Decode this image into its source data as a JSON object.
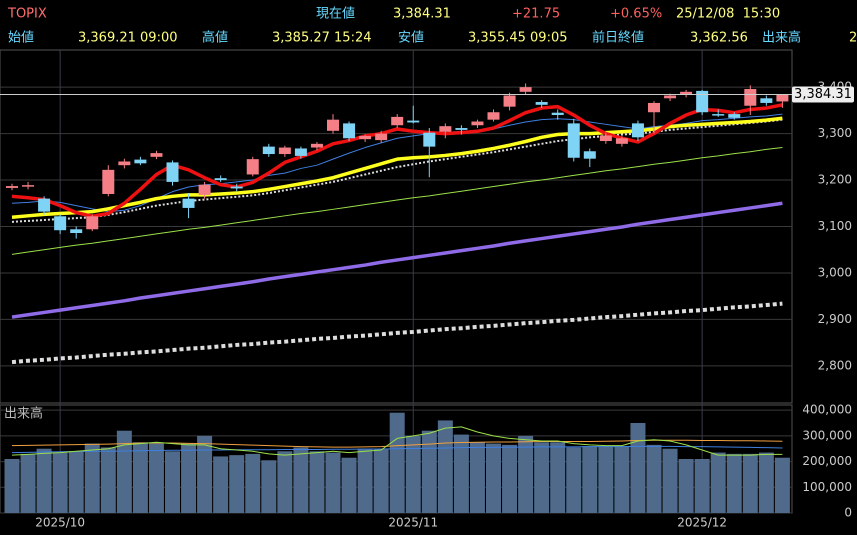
{
  "header": {
    "symbol": "TOPIX",
    "price_label": "現在値",
    "price": "3,384.31",
    "change": "+21.75",
    "change_pct": "+0.65%",
    "datetime": "25/12/08  15:30",
    "open_label": "始値",
    "open": "3,369.21 09:00",
    "high_label": "高値",
    "high": "3,385.27 15:24",
    "low_label": "安値",
    "low": "3,355.45 09:05",
    "prev_close_label": "前日終値",
    "prev_close": "3,362.56",
    "volume_label": "出来高",
    "volume": "2"
  },
  "chart_data": [
    {
      "type": "candlestick",
      "categories": [
        null,
        null,
        null,
        "2025/10",
        null,
        null,
        null,
        null,
        null,
        null,
        null,
        null,
        null,
        null,
        null,
        null,
        null,
        null,
        null,
        null,
        null,
        null,
        null,
        null,
        null,
        "2025/11",
        null,
        null,
        null,
        null,
        null,
        null,
        null,
        null,
        null,
        null,
        null,
        null,
        null,
        null,
        null,
        null,
        null,
        "2025/12",
        null,
        null,
        null,
        null,
        null
      ],
      "open": [
        3183,
        3186,
        3160,
        3122,
        3094,
        3094,
        3170,
        3232,
        3244,
        3250,
        3238,
        3160,
        3168,
        3204,
        3186,
        3212,
        3272,
        3256,
        3268,
        3270,
        3306,
        3322,
        3288,
        3286,
        3318,
        3328,
        3302,
        3304,
        3312,
        3318,
        3330,
        3358,
        3390,
        3368,
        3345,
        3322,
        3262,
        3284,
        3278,
        3322,
        3346,
        3376,
        3384,
        3392,
        3342,
        3342,
        3360,
        3376,
        3369.21
      ],
      "high": [
        3192,
        3196,
        3165,
        3126,
        3100,
        3126,
        3232,
        3246,
        3250,
        3263,
        3242,
        3172,
        3196,
        3210,
        3192,
        3250,
        3278,
        3274,
        3272,
        3282,
        3342,
        3326,
        3298,
        3306,
        3342,
        3360,
        3312,
        3322,
        3318,
        3330,
        3352,
        3388,
        3408,
        3372,
        3352,
        3332,
        3268,
        3302,
        3294,
        3328,
        3370,
        3386,
        3394,
        3394,
        3352,
        3346,
        3404,
        3382,
        3385.27
      ],
      "low": [
        3178,
        3180,
        3125,
        3084,
        3074,
        3090,
        3165,
        3225,
        3232,
        3245,
        3188,
        3118,
        3160,
        3196,
        3176,
        3208,
        3250,
        3250,
        3246,
        3264,
        3300,
        3284,
        3282,
        3280,
        3312,
        3322,
        3206,
        3290,
        3298,
        3312,
        3326,
        3350,
        3384,
        3355,
        3330,
        3240,
        3228,
        3278,
        3272,
        3284,
        3300,
        3370,
        3378,
        3340,
        3336,
        3330,
        3340,
        3360,
        3355.45
      ],
      "close": [
        3187,
        3189,
        3132,
        3092,
        3086,
        3122,
        3222,
        3240,
        3236,
        3258,
        3196,
        3140,
        3190,
        3200,
        3182,
        3245,
        3256,
        3270,
        3252,
        3278,
        3330,
        3290,
        3295,
        3300,
        3336,
        3324,
        3272,
        3316,
        3308,
        3326,
        3346,
        3382,
        3400,
        3362,
        3340,
        3248,
        3246,
        3296,
        3290,
        3292,
        3366,
        3382,
        3390,
        3346,
        3340,
        3334,
        3396,
        3366,
        3384.31
      ],
      "up_color": "#f47f86",
      "down_color": "#7fd3f5",
      "lines": [
        {
          "color": "#8f6be8",
          "style": "thick",
          "values": [
            2905,
            2910,
            2915,
            2920,
            2925,
            2930,
            2935,
            2940,
            2946,
            2951,
            2956,
            2961,
            2966,
            2971,
            2976,
            2981,
            2987,
            2992,
            2997,
            3002,
            3007,
            3012,
            3017,
            3023,
            3028,
            3033,
            3038,
            3043,
            3048,
            3053,
            3058,
            3064,
            3069,
            3074,
            3079,
            3084,
            3089,
            3094,
            3099,
            3105,
            3110,
            3115,
            3120,
            3125,
            3130,
            3135,
            3140,
            3145,
            3150
          ]
        },
        {
          "color": "#dddddd",
          "style": "dotted-thick",
          "values": [
            2808,
            2811,
            2813,
            2816,
            2818,
            2821,
            2824,
            2826,
            2829,
            2831,
            2834,
            2837,
            2839,
            2842,
            2845,
            2847,
            2850,
            2852,
            2855,
            2858,
            2860,
            2863,
            2865,
            2868,
            2871,
            2873,
            2876,
            2879,
            2881,
            2884,
            2886,
            2889,
            2892,
            2894,
            2897,
            2899,
            2902,
            2905,
            2907,
            2910,
            2913,
            2915,
            2918,
            2920,
            2923,
            2926,
            2928,
            2931,
            2934
          ]
        },
        {
          "color": "#9be04a",
          "style": "thin",
          "values": [
            3040,
            3045,
            3050,
            3055,
            3060,
            3064,
            3069,
            3074,
            3079,
            3084,
            3089,
            3094,
            3098,
            3103,
            3108,
            3113,
            3118,
            3123,
            3128,
            3132,
            3137,
            3142,
            3147,
            3152,
            3157,
            3162,
            3166,
            3171,
            3176,
            3181,
            3186,
            3191,
            3196,
            3200,
            3205,
            3210,
            3215,
            3220,
            3224,
            3229,
            3234,
            3238,
            3243,
            3248,
            3252,
            3257,
            3261,
            3266,
            3270
          ]
        },
        {
          "color": "#3f7fe0",
          "style": "thin",
          "values": [
            3150,
            3152,
            3155,
            3152,
            3145,
            3138,
            3132,
            3135,
            3145,
            3160,
            3175,
            3185,
            3190,
            3192,
            3196,
            3200,
            3210,
            3215,
            3225,
            3232,
            3245,
            3258,
            3270,
            3280,
            3290,
            3295,
            3300,
            3302,
            3305,
            3306,
            3310,
            3318,
            3325,
            3330,
            3332,
            3330,
            3325,
            3320,
            3315,
            3310,
            3315,
            3318,
            3322,
            3328,
            3330,
            3333,
            3336,
            3338,
            3342
          ]
        },
        {
          "color": "#dddddd",
          "style": "dotted",
          "values": [
            3110,
            3112,
            3114,
            3116,
            3118,
            3120,
            3125,
            3131,
            3138,
            3145,
            3150,
            3155,
            3158,
            3161,
            3164,
            3167,
            3172,
            3178,
            3184,
            3190,
            3196,
            3204,
            3212,
            3220,
            3228,
            3234,
            3240,
            3245,
            3250,
            3255,
            3260,
            3266,
            3272,
            3278,
            3284,
            3288,
            3292,
            3295,
            3298,
            3300,
            3304,
            3308,
            3311,
            3314,
            3317,
            3320,
            3323,
            3326,
            3330
          ]
        },
        {
          "color": "#ffff1e",
          "style": "thick",
          "values": [
            3120,
            3123,
            3126,
            3128,
            3130,
            3132,
            3138,
            3145,
            3152,
            3160,
            3165,
            3168,
            3168,
            3170,
            3172,
            3175,
            3180,
            3186,
            3192,
            3198,
            3205,
            3215,
            3225,
            3235,
            3245,
            3248,
            3250,
            3253,
            3257,
            3262,
            3268,
            3275,
            3283,
            3292,
            3298,
            3300,
            3300,
            3302,
            3304,
            3306,
            3310,
            3315,
            3318,
            3320,
            3322,
            3324,
            3326,
            3329,
            3333
          ]
        },
        {
          "color": "#ee1111",
          "style": "thick",
          "values": [
            3165,
            3162,
            3158,
            3145,
            3130,
            3122,
            3128,
            3150,
            3180,
            3212,
            3232,
            3222,
            3205,
            3190,
            3185,
            3195,
            3215,
            3238,
            3250,
            3262,
            3278,
            3285,
            3295,
            3300,
            3310,
            3305,
            3302,
            3300,
            3302,
            3305,
            3312,
            3328,
            3345,
            3355,
            3358,
            3340,
            3318,
            3300,
            3290,
            3282,
            3300,
            3322,
            3340,
            3352,
            3350,
            3345,
            3352,
            3355,
            3362
          ]
        }
      ],
      "ylim": [
        2720,
        3480
      ],
      "yticks": [
        {
          "value": 2800,
          "label": "2,800"
        },
        {
          "value": 2900,
          "label": "2,900"
        },
        {
          "value": 3000,
          "label": "3,000"
        },
        {
          "value": 3100,
          "label": "3,100"
        },
        {
          "value": 3200,
          "label": "3,200"
        },
        {
          "value": 3300,
          "label": "3,300"
        },
        {
          "value": 3400,
          "label": "3,400"
        }
      ],
      "grid": true
    },
    {
      "type": "bar",
      "title": "出来高",
      "color": "#4f6a8a",
      "values": [
        210000,
        230000,
        250000,
        235000,
        240000,
        270000,
        255000,
        320000,
        275000,
        270000,
        240000,
        270000,
        300000,
        220000,
        225000,
        230000,
        205000,
        240000,
        255000,
        240000,
        235000,
        215000,
        250000,
        250000,
        390000,
        300000,
        320000,
        360000,
        305000,
        275000,
        270000,
        265000,
        300000,
        275000,
        275000,
        255000,
        260000,
        260000,
        260000,
        350000,
        265000,
        250000,
        210000,
        210000,
        235000,
        230000,
        230000,
        235000,
        215000
      ],
      "lines": [
        {
          "color": "#3f7fe0",
          "values": [
            235000,
            236000,
            237000,
            238000,
            239000,
            240000,
            240000,
            241000,
            242000,
            243000,
            244000,
            244000,
            245000,
            245000,
            246000,
            246000,
            246000,
            247000,
            247000,
            247000,
            248000,
            248000,
            249000,
            249000,
            250000,
            251000,
            252000,
            253000,
            254000,
            255000,
            255000,
            256000,
            256000,
            257000,
            257000,
            257000,
            258000,
            258000,
            258000,
            259000,
            259000,
            259000,
            258000,
            258000,
            257000,
            256000,
            255000,
            254000,
            253000
          ]
        },
        {
          "color": "#f0a040",
          "values": [
            262000,
            263000,
            264000,
            265000,
            266000,
            267000,
            268000,
            270000,
            272000,
            272000,
            272000,
            271000,
            270000,
            268000,
            266000,
            264000,
            262000,
            260000,
            258000,
            257000,
            256000,
            256000,
            257000,
            258000,
            262000,
            265000,
            268000,
            272000,
            274000,
            275000,
            276000,
            276000,
            277000,
            278000,
            278000,
            278000,
            278000,
            279000,
            280000,
            282000,
            283000,
            283000,
            283000,
            282000,
            282000,
            281000,
            281000,
            280000,
            279000
          ]
        },
        {
          "color": "#9be04a",
          "values": [
            225000,
            228000,
            232000,
            235000,
            240000,
            245000,
            250000,
            265000,
            270000,
            275000,
            270000,
            265000,
            265000,
            250000,
            245000,
            240000,
            230000,
            225000,
            230000,
            235000,
            240000,
            235000,
            240000,
            245000,
            290000,
            300000,
            310000,
            330000,
            335000,
            315000,
            300000,
            290000,
            285000,
            280000,
            280000,
            270000,
            265000,
            262000,
            262000,
            280000,
            285000,
            280000,
            265000,
            245000,
            225000,
            225000,
            225000,
            228000,
            228000
          ]
        }
      ],
      "ylim": [
        0,
        420000
      ],
      "yticks": [
        0,
        {
          "value": 100000,
          "label": "100,000"
        },
        {
          "value": 200000,
          "label": "200,000"
        },
        {
          "value": 300000,
          "label": "300,000"
        },
        {
          "value": 400000,
          "label": "400,000"
        }
      ],
      "grid": true
    }
  ]
}
